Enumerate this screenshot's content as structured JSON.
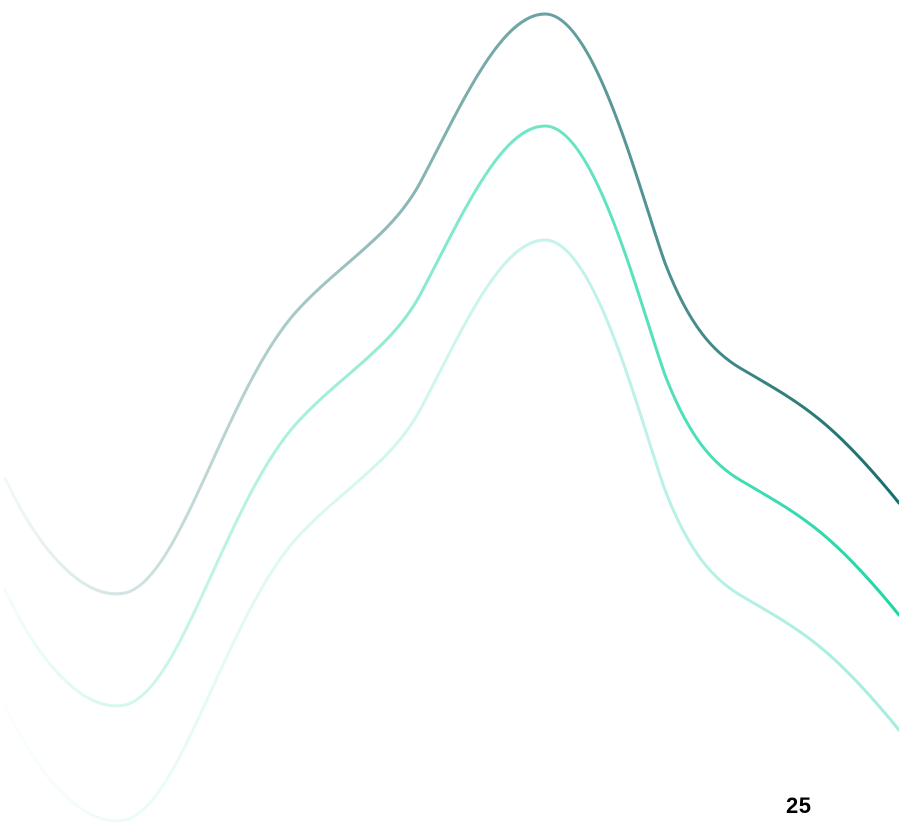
{
  "page": {
    "number": "25"
  },
  "decoration": {
    "type": "wave-lines",
    "lines": [
      {
        "name": "wave-line-dark",
        "color": "#176f6c"
      },
      {
        "name": "wave-line-green",
        "color": "#1ed6a6"
      },
      {
        "name": "wave-line-light",
        "color": "#a5ede0"
      }
    ]
  }
}
